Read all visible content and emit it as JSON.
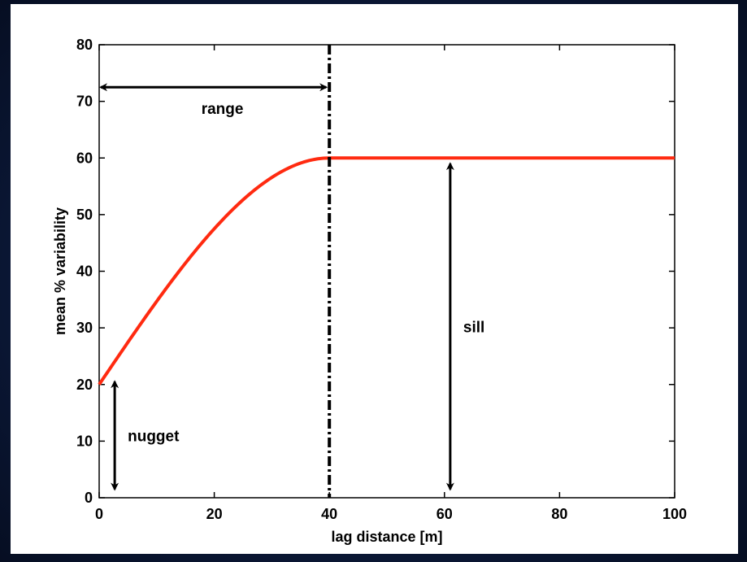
{
  "chart_data": {
    "type": "line",
    "xlabel": "lag distance [m]",
    "ylabel": "mean % variability",
    "xlim": [
      0,
      100
    ],
    "ylim": [
      0,
      80
    ],
    "xticks": [
      0,
      20,
      40,
      60,
      80,
      100
    ],
    "yticks": [
      0,
      10,
      20,
      30,
      40,
      50,
      60,
      70,
      80
    ],
    "grid": false,
    "series": [
      {
        "color": "#ff2a10",
        "model": "spherical",
        "nugget": 20,
        "sill": 60,
        "range": 40,
        "x": [
          0,
          5,
          10,
          15,
          20,
          25,
          30,
          35,
          40,
          50,
          60,
          70,
          80,
          90,
          100
        ],
        "values": [
          20,
          27.46,
          34.84,
          41.95,
          48.63,
          54.65,
          59.78,
          59.71,
          60,
          60,
          60,
          60,
          60,
          60,
          60
        ]
      }
    ],
    "range_line": {
      "x": 40,
      "style": "dash-dot"
    },
    "annotations": [
      {
        "text": "range",
        "arrow": {
          "type": "horizontal",
          "from_x": 0,
          "to_x": 40,
          "y": 72.5
        }
      },
      {
        "text": "nugget",
        "arrow": {
          "type": "vertical",
          "x": 2.7,
          "from_y": 1.5,
          "to_y": 20.5
        }
      },
      {
        "text": "sill",
        "arrow": {
          "type": "vertical",
          "x": 61,
          "from_y": 1.5,
          "to_y": 59
        }
      }
    ]
  }
}
